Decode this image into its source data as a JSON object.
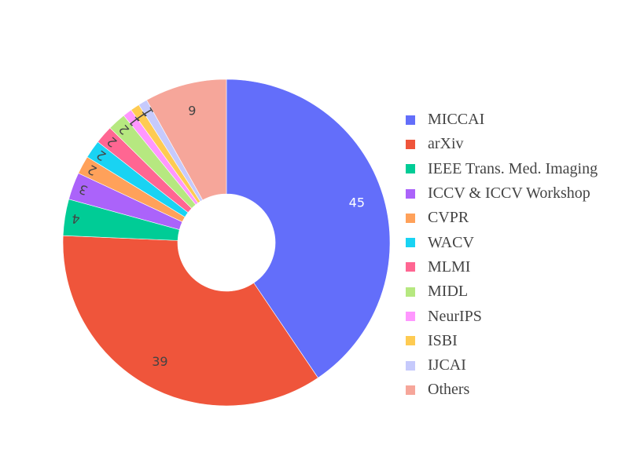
{
  "chart_data": {
    "type": "pie",
    "hole": true,
    "direction": "clockwise",
    "legend_position": "right",
    "slices": [
      {
        "label": "MICCAI",
        "value": 45,
        "color": "#636efa",
        "text_color": "#ffffff"
      },
      {
        "label": "arXiv",
        "value": 39,
        "color": "#ef553b",
        "text_color": "#444444"
      },
      {
        "label": "IEEE Trans. Med. Imaging",
        "value": 4,
        "color": "#00cc96",
        "text_color": "#444444"
      },
      {
        "label": "ICCV & ICCV Workshop",
        "value": 3,
        "color": "#ab63fa",
        "text_color": "#444444"
      },
      {
        "label": "CVPR",
        "value": 2,
        "color": "#ffa15a",
        "text_color": "#444444"
      },
      {
        "label": "WACV",
        "value": 2,
        "color": "#19d3f3",
        "text_color": "#444444"
      },
      {
        "label": "MLMI",
        "value": 2,
        "color": "#ff6692",
        "text_color": "#444444"
      },
      {
        "label": "MIDL",
        "value": 2,
        "color": "#b6e880",
        "text_color": "#444444"
      },
      {
        "label": "NeurIPS",
        "value": 1,
        "color": "#ff97ff",
        "text_color": "#444444"
      },
      {
        "label": "ISBI",
        "value": 1,
        "color": "#fecb52",
        "text_color": "#444444"
      },
      {
        "label": "IJCAI",
        "value": 1,
        "color": "#c6cafc",
        "text_color": "#444444"
      },
      {
        "label": "Others",
        "value": 9,
        "color": "#f6a69a",
        "text_color": "#444444"
      }
    ]
  }
}
